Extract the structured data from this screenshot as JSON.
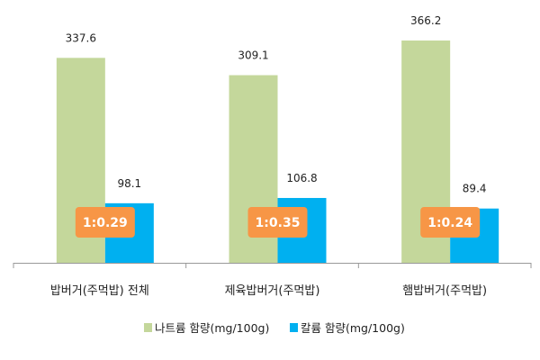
{
  "chart_data": {
    "type": "bar",
    "title": "",
    "xlabel": "",
    "ylabel": "",
    "ylim": [
      0,
      430
    ],
    "grid": false,
    "legend_position": "bottom",
    "categories": [
      "밥버거(주먹밥) 전체",
      "제육밥버거(주먹밥)",
      "햄밥버거(주먹밥)"
    ],
    "series": [
      {
        "name": "나트륨 함량(mg/100g)",
        "color": "#c4d79b",
        "values": [
          337.6,
          309.1,
          366.2
        ],
        "labels": [
          "337.6",
          "309.1",
          "366.2"
        ]
      },
      {
        "name": "칼륨 함량(mg/100g)",
        "color": "#00b0f0",
        "values": [
          98.1,
          106.8,
          89.4
        ],
        "labels": [
          "98.1",
          "106.8",
          "89.4"
        ]
      }
    ],
    "annotations": [
      "1:0.29",
      "1:0.35",
      "1:0.24"
    ],
    "annotation_color": "#f79646"
  }
}
